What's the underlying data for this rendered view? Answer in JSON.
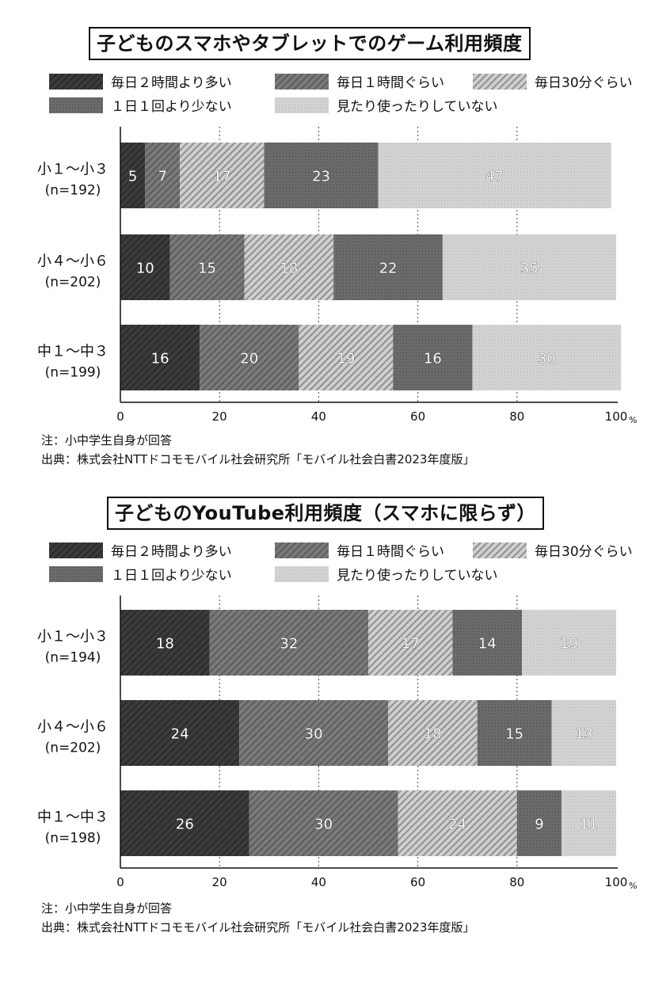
{
  "chart_data": [
    {
      "type": "bar",
      "orientation": "horizontal-stacked",
      "title": "子どものスマホやタブレットでのゲーム利用頻度",
      "legend": [
        "毎日２時間より多い",
        "毎日１時間ぐらい",
        "毎日30分ぐらい",
        "１日１回より少ない",
        "見たり使ったりしていない"
      ],
      "categories": [
        {
          "label": "小１～小３",
          "n": "(n=192)"
        },
        {
          "label": "小４～小６",
          "n": "(n=202)"
        },
        {
          "label": "中１～中３",
          "n": "(n=199)"
        }
      ],
      "series": [
        {
          "name": "毎日２時間より多い",
          "values": [
            5,
            10,
            16
          ]
        },
        {
          "name": "毎日１時間ぐらい",
          "values": [
            7,
            15,
            20
          ]
        },
        {
          "name": "毎日30分ぐらい",
          "values": [
            17,
            18,
            19
          ]
        },
        {
          "name": "１日１回より少ない",
          "values": [
            23,
            22,
            16
          ]
        },
        {
          "name": "見たり使ったりしていない",
          "values": [
            47,
            35,
            30
          ]
        }
      ],
      "xlim": [
        0,
        100
      ],
      "xticks": [
        "0",
        "20",
        "40",
        "60",
        "80",
        "100"
      ],
      "xunit": "%",
      "grid": "dotted vertical",
      "notes": [
        "注：小中学生自身が回答",
        "出典：株式会社NTTドコモモバイル社会研究所「モバイル社会白書2023年度版」"
      ]
    },
    {
      "type": "bar",
      "orientation": "horizontal-stacked",
      "title": "子どものYouTube利用頻度（スマホに限らず）",
      "legend": [
        "毎日２時間より多い",
        "毎日１時間ぐらい",
        "毎日30分ぐらい",
        "１日１回より少ない",
        "見たり使ったりしていない"
      ],
      "categories": [
        {
          "label": "小１～小３",
          "n": "(n=194)"
        },
        {
          "label": "小４～小６",
          "n": "(n=202)"
        },
        {
          "label": "中１～中３",
          "n": "(n=198)"
        }
      ],
      "series": [
        {
          "name": "毎日２時間より多い",
          "values": [
            18,
            24,
            26
          ]
        },
        {
          "name": "毎日１時間ぐらい",
          "values": [
            32,
            30,
            30
          ]
        },
        {
          "name": "毎日30分ぐらい",
          "values": [
            17,
            18,
            24
          ]
        },
        {
          "name": "１日１回より少ない",
          "values": [
            14,
            15,
            9
          ]
        },
        {
          "name": "見たり使ったりしていない",
          "values": [
            19,
            13,
            11
          ]
        }
      ],
      "xlim": [
        0,
        100
      ],
      "xticks": [
        "0",
        "20",
        "40",
        "60",
        "80",
        "100"
      ],
      "xunit": "%",
      "grid": "dotted vertical",
      "notes": [
        "注：小中学生自身が回答",
        "出典：株式会社NTTドコモモバイル社会研究所「モバイル社会白書2023年度版」"
      ]
    }
  ],
  "series_colors": [
    "#3c3c3c",
    "#777777",
    "#c4c4c4",
    "#666666",
    "#cdcdcd"
  ]
}
